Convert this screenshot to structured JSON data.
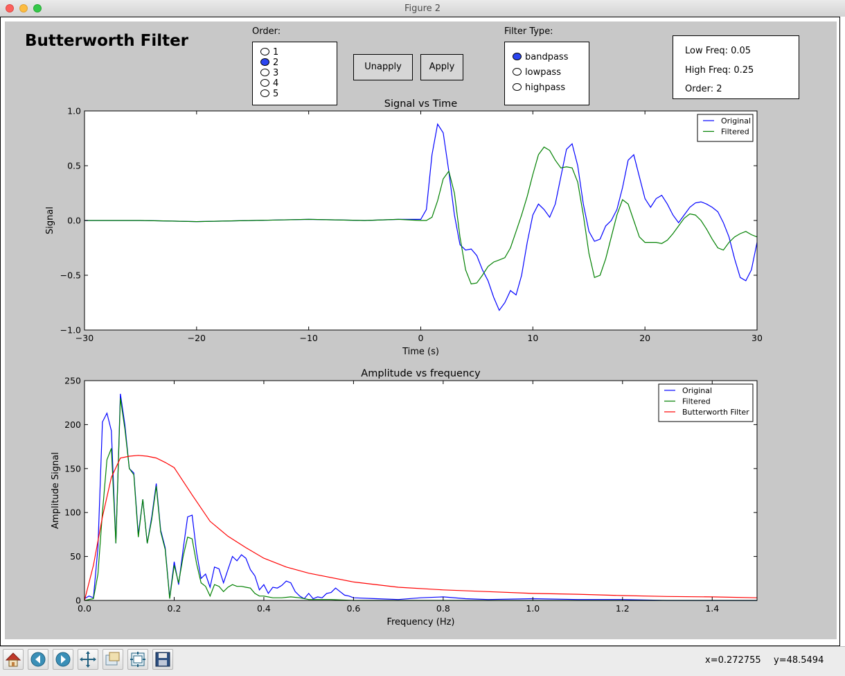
{
  "window": {
    "title": "Figure 2"
  },
  "app": {
    "title": "Butterworth Filter"
  },
  "order_selector": {
    "label": "Order:",
    "options": [
      "1",
      "2",
      "3",
      "4",
      "5"
    ],
    "selected": "2"
  },
  "buttons": {
    "unapply": "Unapply",
    "apply": "Apply"
  },
  "filter_type": {
    "label": "Filter Type:",
    "options": [
      "bandpass",
      "lowpass",
      "highpass"
    ],
    "selected": "bandpass"
  },
  "info": {
    "low_freq": "Low Freq: 0.05",
    "high_freq": "High Freq: 0.25",
    "order": "Order: 2"
  },
  "colors": {
    "original": "#0000ff",
    "filtered": "#008000",
    "butterworth": "#ff0000",
    "canvas_bg": "#c8c8c8",
    "radio_selected": "#2b45f0"
  },
  "toolbar": {
    "icons": [
      "home-icon",
      "back-arrow-icon",
      "forward-arrow-icon",
      "pan-icon",
      "zoom-icon",
      "configure-subplots-icon",
      "save-icon"
    ]
  },
  "status": {
    "x": "x=0.272755",
    "y": "y=48.5494"
  },
  "chart_data": [
    {
      "type": "line",
      "title": "Signal vs Time",
      "xlabel": "Time (s)",
      "ylabel": "Signal",
      "xlim": [
        -30,
        30
      ],
      "ylim": [
        -1.0,
        1.0
      ],
      "xticks": [
        -30,
        -20,
        -10,
        0,
        10,
        20,
        30
      ],
      "xtick_labels": [
        "−30",
        "−20",
        "−10",
        "0",
        "10",
        "20",
        "30"
      ],
      "yticks": [
        -1.0,
        -0.5,
        0.0,
        0.5,
        1.0
      ],
      "ytick_labels": [
        "−1.0",
        "−0.5",
        "0.0",
        "0.5",
        "1.0"
      ],
      "grid": false,
      "legend": "top-right",
      "series": [
        {
          "name": "Original",
          "x": [
            -30,
            -25,
            -20,
            -15,
            -10,
            -5,
            -2,
            0,
            0.5,
            1,
            1.5,
            2,
            2.5,
            3,
            3.5,
            4,
            4.5,
            5,
            5.5,
            6,
            6.5,
            7,
            7.5,
            8,
            8.5,
            9,
            9.5,
            10,
            10.5,
            11,
            11.5,
            12,
            12.5,
            13,
            13.5,
            14,
            14.5,
            15,
            15.5,
            16,
            16.5,
            17,
            17.5,
            18,
            18.5,
            19,
            19.5,
            20,
            20.5,
            21,
            21.5,
            22,
            22.5,
            23,
            23.5,
            24,
            24.5,
            25,
            25.5,
            26,
            26.5,
            27,
            27.5,
            28,
            28.5,
            29,
            29.5,
            30
          ],
          "y": [
            0.0,
            0.0,
            -0.01,
            0.0,
            0.01,
            0.0,
            0.01,
            0.01,
            0.1,
            0.6,
            0.88,
            0.8,
            0.45,
            0.05,
            -0.22,
            -0.27,
            -0.26,
            -0.32,
            -0.45,
            -0.55,
            -0.7,
            -0.82,
            -0.75,
            -0.64,
            -0.68,
            -0.5,
            -0.2,
            0.05,
            0.15,
            0.1,
            0.03,
            0.15,
            0.4,
            0.65,
            0.7,
            0.5,
            0.15,
            -0.1,
            -0.19,
            -0.17,
            -0.05,
            0.0,
            0.1,
            0.3,
            0.55,
            0.6,
            0.4,
            0.2,
            0.12,
            0.2,
            0.23,
            0.15,
            0.05,
            -0.02,
            0.05,
            0.12,
            0.16,
            0.17,
            0.15,
            0.12,
            0.08,
            -0.02,
            -0.15,
            -0.35,
            -0.52,
            -0.55,
            -0.45,
            -0.2
          ]
        },
        {
          "name": "Filtered",
          "x": [
            -30,
            -25,
            -20,
            -15,
            -10,
            -5,
            -2,
            0,
            0.5,
            1,
            1.5,
            2,
            2.5,
            3,
            3.5,
            4,
            4.5,
            5,
            5.5,
            6,
            6.5,
            7,
            7.5,
            8,
            8.5,
            9,
            9.5,
            10,
            10.5,
            11,
            11.5,
            12,
            12.5,
            13,
            13.5,
            14,
            14.5,
            15,
            15.5,
            16,
            16.5,
            17,
            17.5,
            18,
            18.5,
            19,
            19.5,
            20,
            20.5,
            21,
            21.5,
            22,
            22.5,
            23,
            23.5,
            24,
            24.5,
            25,
            25.5,
            26,
            26.5,
            27,
            27.5,
            28,
            28.5,
            29,
            29.5,
            30
          ],
          "y": [
            0.0,
            0.0,
            -0.01,
            0.0,
            0.01,
            0.0,
            0.01,
            0.0,
            0.0,
            0.03,
            0.18,
            0.38,
            0.45,
            0.25,
            -0.15,
            -0.45,
            -0.58,
            -0.57,
            -0.5,
            -0.42,
            -0.38,
            -0.36,
            -0.34,
            -0.25,
            -0.1,
            0.05,
            0.22,
            0.42,
            0.6,
            0.67,
            0.64,
            0.55,
            0.48,
            0.49,
            0.48,
            0.35,
            0.05,
            -0.3,
            -0.52,
            -0.5,
            -0.35,
            -0.15,
            0.05,
            0.19,
            0.15,
            0.0,
            -0.15,
            -0.2,
            -0.2,
            -0.2,
            -0.21,
            -0.18,
            -0.12,
            -0.05,
            0.02,
            0.06,
            0.05,
            0.0,
            -0.08,
            -0.17,
            -0.25,
            -0.27,
            -0.2,
            -0.15,
            -0.12,
            -0.1,
            -0.13,
            -0.15
          ]
        },
        {
          "name": "",
          "x": [],
          "y": []
        }
      ]
    },
    {
      "type": "line",
      "title": "Amplitude vs frequency",
      "xlabel": "Frequency (Hz)",
      "ylabel": "Amplitude Signal",
      "xlim": [
        0.0,
        1.5
      ],
      "ylim": [
        0,
        250
      ],
      "xticks": [
        0.0,
        0.2,
        0.4,
        0.6,
        0.8,
        1.0,
        1.2,
        1.4
      ],
      "xtick_labels": [
        "0.0",
        "0.2",
        "0.4",
        "0.6",
        "0.8",
        "1.0",
        "1.2",
        "1.4"
      ],
      "yticks": [
        0,
        50,
        100,
        150,
        200,
        250
      ],
      "ytick_labels": [
        "0",
        "50",
        "100",
        "150",
        "200",
        "250"
      ],
      "grid": false,
      "legend": "top-right",
      "series": [
        {
          "name": "Original",
          "x": [
            0,
            0.01,
            0.02,
            0.03,
            0.04,
            0.05,
            0.06,
            0.07,
            0.08,
            0.09,
            0.1,
            0.11,
            0.12,
            0.13,
            0.14,
            0.15,
            0.16,
            0.17,
            0.18,
            0.19,
            0.2,
            0.21,
            0.22,
            0.23,
            0.24,
            0.25,
            0.26,
            0.27,
            0.28,
            0.29,
            0.3,
            0.31,
            0.32,
            0.33,
            0.34,
            0.35,
            0.36,
            0.37,
            0.38,
            0.39,
            0.4,
            0.41,
            0.42,
            0.43,
            0.44,
            0.45,
            0.46,
            0.47,
            0.48,
            0.49,
            0.5,
            0.51,
            0.52,
            0.53,
            0.54,
            0.55,
            0.56,
            0.57,
            0.58,
            0.59,
            0.6,
            0.65,
            0.7,
            0.75,
            0.8,
            0.85,
            0.9,
            1.0,
            1.1,
            1.2,
            1.3,
            1.4,
            1.5
          ],
          "y": [
            2,
            5,
            3,
            60,
            203,
            213,
            193,
            65,
            235,
            200,
            150,
            145,
            75,
            115,
            65,
            95,
            133,
            80,
            60,
            3,
            44,
            18,
            58,
            95,
            97,
            55,
            25,
            30,
            15,
            38,
            36,
            20,
            35,
            50,
            45,
            52,
            48,
            35,
            28,
            12,
            18,
            8,
            15,
            14,
            17,
            22,
            20,
            10,
            5,
            2,
            8,
            2,
            4,
            3,
            8,
            9,
            14,
            10,
            6,
            5,
            3,
            2,
            1,
            3,
            4,
            2,
            1,
            2,
            1,
            1,
            0,
            0,
            0
          ]
        },
        {
          "name": "Filtered",
          "x": [
            0,
            0.01,
            0.02,
            0.03,
            0.04,
            0.05,
            0.06,
            0.07,
            0.08,
            0.09,
            0.1,
            0.11,
            0.12,
            0.13,
            0.14,
            0.15,
            0.16,
            0.17,
            0.18,
            0.19,
            0.2,
            0.21,
            0.22,
            0.23,
            0.24,
            0.25,
            0.26,
            0.27,
            0.28,
            0.29,
            0.3,
            0.31,
            0.32,
            0.33,
            0.34,
            0.35,
            0.36,
            0.37,
            0.38,
            0.39,
            0.4,
            0.42,
            0.44,
            0.46,
            0.48,
            0.5,
            0.55,
            0.6,
            0.7,
            0.8,
            1.0,
            1.2,
            1.5
          ],
          "y": [
            0,
            1,
            2,
            30,
            100,
            160,
            173,
            65,
            230,
            195,
            150,
            143,
            72,
            115,
            65,
            92,
            130,
            78,
            58,
            2,
            40,
            20,
            50,
            72,
            70,
            42,
            20,
            16,
            5,
            18,
            16,
            10,
            15,
            18,
            16,
            16,
            15,
            14,
            8,
            5,
            5,
            3,
            3,
            4,
            3,
            1,
            1,
            0,
            0,
            0,
            0,
            0,
            0
          ]
        },
        {
          "name": "Butterworth Filter",
          "x": [
            0,
            0.02,
            0.04,
            0.06,
            0.08,
            0.1,
            0.12,
            0.14,
            0.16,
            0.18,
            0.2,
            0.24,
            0.28,
            0.32,
            0.36,
            0.4,
            0.45,
            0.5,
            0.6,
            0.7,
            0.8,
            0.9,
            1.0,
            1.1,
            1.2,
            1.3,
            1.4,
            1.5
          ],
          "y": [
            0,
            40,
            95,
            140,
            162,
            164,
            165,
            164,
            162,
            157,
            151,
            120,
            90,
            73,
            60,
            48,
            38,
            31,
            21,
            15,
            12,
            10,
            8,
            7,
            5.5,
            4.5,
            4,
            3
          ]
        }
      ]
    }
  ]
}
